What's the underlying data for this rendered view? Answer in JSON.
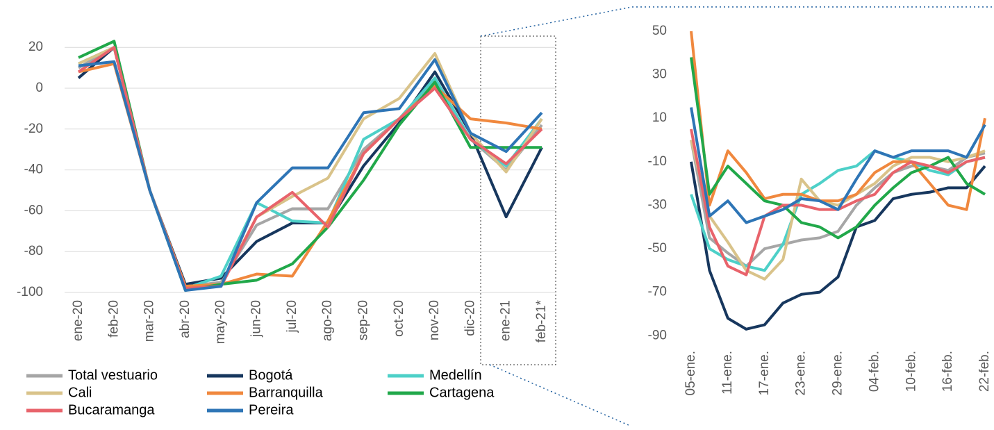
{
  "chart_data": [
    {
      "type": "line",
      "categories": [
        "ene-20",
        "feb-20",
        "mar-20",
        "abr-20",
        "may-20",
        "jun-20",
        "jul-20",
        "ago-20",
        "sep-20",
        "oct-20",
        "nov-20",
        "dic-20",
        "ene-21",
        "feb-21*"
      ],
      "ylim": [
        -100,
        25
      ],
      "yticks": [
        -100,
        -80,
        -60,
        -40,
        -20,
        0,
        20
      ],
      "grid": true,
      "series": [
        {
          "name": "Total vestuario",
          "color": "#a6a6a6",
          "values": [
            10,
            20,
            -50,
            -97,
            -95,
            -67,
            -59,
            -59,
            -30,
            -15,
            3,
            -25,
            -40,
            -18
          ]
        },
        {
          "name": "Bogotá",
          "color": "#17375e",
          "values": [
            5,
            20,
            -50,
            -96,
            -93,
            -75,
            -66,
            -66,
            -38,
            -17,
            8,
            -22,
            -63,
            -29
          ]
        },
        {
          "name": "Medellín",
          "color": "#4dd0c8",
          "values": [
            12,
            20,
            -50,
            -98,
            -92,
            -56,
            -65,
            -66,
            -25,
            -15,
            5,
            -25,
            -38,
            -15
          ]
        },
        {
          "name": "Cali",
          "color": "#d9c38a",
          "values": [
            12,
            20,
            -50,
            -97,
            -96,
            -63,
            -53,
            -44,
            -15,
            -5,
            17,
            -22,
            -41,
            -15
          ]
        },
        {
          "name": "Barranquilla",
          "color": "#f0883e",
          "values": [
            8,
            12,
            -50,
            -97,
            -96,
            -91,
            -92,
            -65,
            -32,
            -15,
            1,
            -15,
            -17,
            -20
          ]
        },
        {
          "name": "Cartagena",
          "color": "#21a84a",
          "values": [
            15,
            23,
            -50,
            -99,
            -96,
            -94,
            -86,
            -68,
            -45,
            -18,
            3,
            -29,
            -29,
            -29
          ]
        },
        {
          "name": "Bucaramanga",
          "color": "#e8636b",
          "values": [
            8,
            20,
            -50,
            -98,
            -97,
            -63,
            -51,
            -68,
            -32,
            -15,
            0,
            -25,
            -37,
            -20
          ]
        },
        {
          "name": "Pereira",
          "color": "#2e75b6",
          "values": [
            11,
            13,
            -50,
            -99,
            -97,
            -56,
            -39,
            -39,
            -12,
            -10,
            14,
            -22,
            -31,
            -12
          ]
        }
      ]
    },
    {
      "type": "line",
      "categories": [
        "05-ene.",
        null,
        "11-ene.",
        null,
        "17-ene.",
        null,
        "23-ene.",
        null,
        "29-ene.",
        null,
        "04-feb.",
        null,
        "10-feb.",
        null,
        "16-feb.",
        null,
        "22-feb."
      ],
      "ylim": [
        -95,
        52
      ],
      "yticks": [
        -90,
        -70,
        -50,
        -30,
        -10,
        10,
        30,
        50
      ],
      "grid": false,
      "series": [
        {
          "color": "#a6a6a6",
          "values": [
            0,
            -45,
            -52,
            -58,
            -50,
            -48,
            -46,
            -45,
            -42,
            -30,
            -22,
            -15,
            -12,
            -12,
            -14,
            -8,
            -6
          ]
        },
        {
          "color": "#17375e",
          "values": [
            -10,
            -60,
            -82,
            -87,
            -85,
            -75,
            -71,
            -70,
            -63,
            -40,
            -37,
            -27,
            -25,
            -24,
            -22,
            -22,
            -12
          ]
        },
        {
          "color": "#4dd0c8",
          "values": [
            -25,
            -50,
            -55,
            -58,
            -60,
            -48,
            -25,
            -20,
            -14,
            -12,
            -5,
            -8,
            -10,
            -14,
            -16,
            -10,
            -8
          ]
        },
        {
          "color": "#d9c38a",
          "values": [
            0,
            -35,
            -47,
            -60,
            -64,
            -55,
            -18,
            -28,
            -30,
            -25,
            -20,
            -12,
            -8,
            -8,
            -10,
            -8,
            -5
          ]
        },
        {
          "color": "#f0883e",
          "values": [
            50,
            -30,
            -5,
            -15,
            -27,
            -25,
            -25,
            -28,
            -28,
            -25,
            -15,
            -10,
            -10,
            -20,
            -30,
            -32,
            10
          ]
        },
        {
          "color": "#21a84a",
          "values": [
            38,
            -25,
            -12,
            -20,
            -28,
            -30,
            -38,
            -40,
            -45,
            -40,
            -30,
            -22,
            -15,
            -12,
            -8,
            -20,
            -25
          ]
        },
        {
          "color": "#e8636b",
          "values": [
            5,
            -40,
            -58,
            -62,
            -35,
            -30,
            -30,
            -32,
            -32,
            -28,
            -25,
            -15,
            -10,
            -12,
            -15,
            -10,
            -8
          ]
        },
        {
          "color": "#2e75b6",
          "values": [
            15,
            -35,
            -28,
            -38,
            -35,
            -32,
            -27,
            -28,
            -32,
            -18,
            -5,
            -8,
            -5,
            -5,
            -5,
            -8,
            7
          ]
        }
      ]
    }
  ]
}
